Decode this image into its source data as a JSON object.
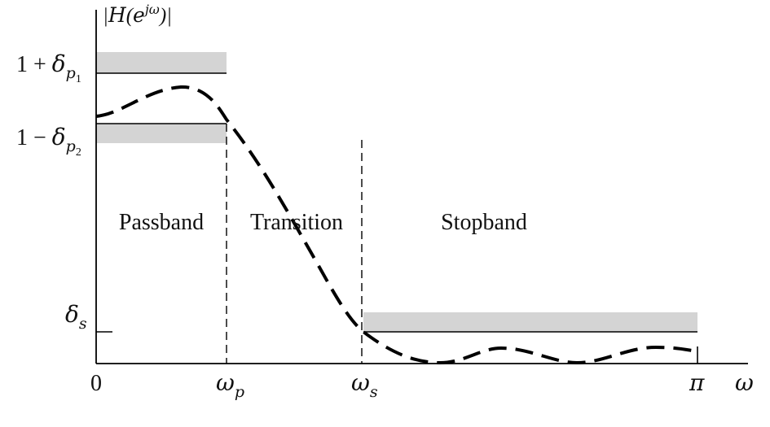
{
  "chart_data": {
    "type": "line",
    "title": "",
    "ylabel": {
      "open": "|",
      "symbol": "H",
      "paren_open": "(",
      "base": "e",
      "exponent": "jω",
      "paren_close": ")|"
    },
    "xlabel": "ω",
    "x_ticks": [
      {
        "base": "0",
        "sub": ""
      },
      {
        "base": "ω",
        "sub": "p"
      },
      {
        "base": "ω",
        "sub": "s"
      },
      {
        "base": "π",
        "sub": ""
      }
    ],
    "y_ticks": [
      {
        "prefix": "1 + ",
        "base": "δ",
        "sub": "p",
        "subsub": "1"
      },
      {
        "prefix": "1 − ",
        "base": "δ",
        "sub": "p",
        "subsub": "2"
      },
      {
        "prefix": "",
        "base": "δ",
        "sub": "s",
        "subsub": ""
      }
    ],
    "regions": [
      "Passband",
      "Transition",
      "Stopband"
    ],
    "tolerance_colors": {
      "band": "#d4d4d4",
      "line": "#000000",
      "curve": "#000000"
    }
  }
}
